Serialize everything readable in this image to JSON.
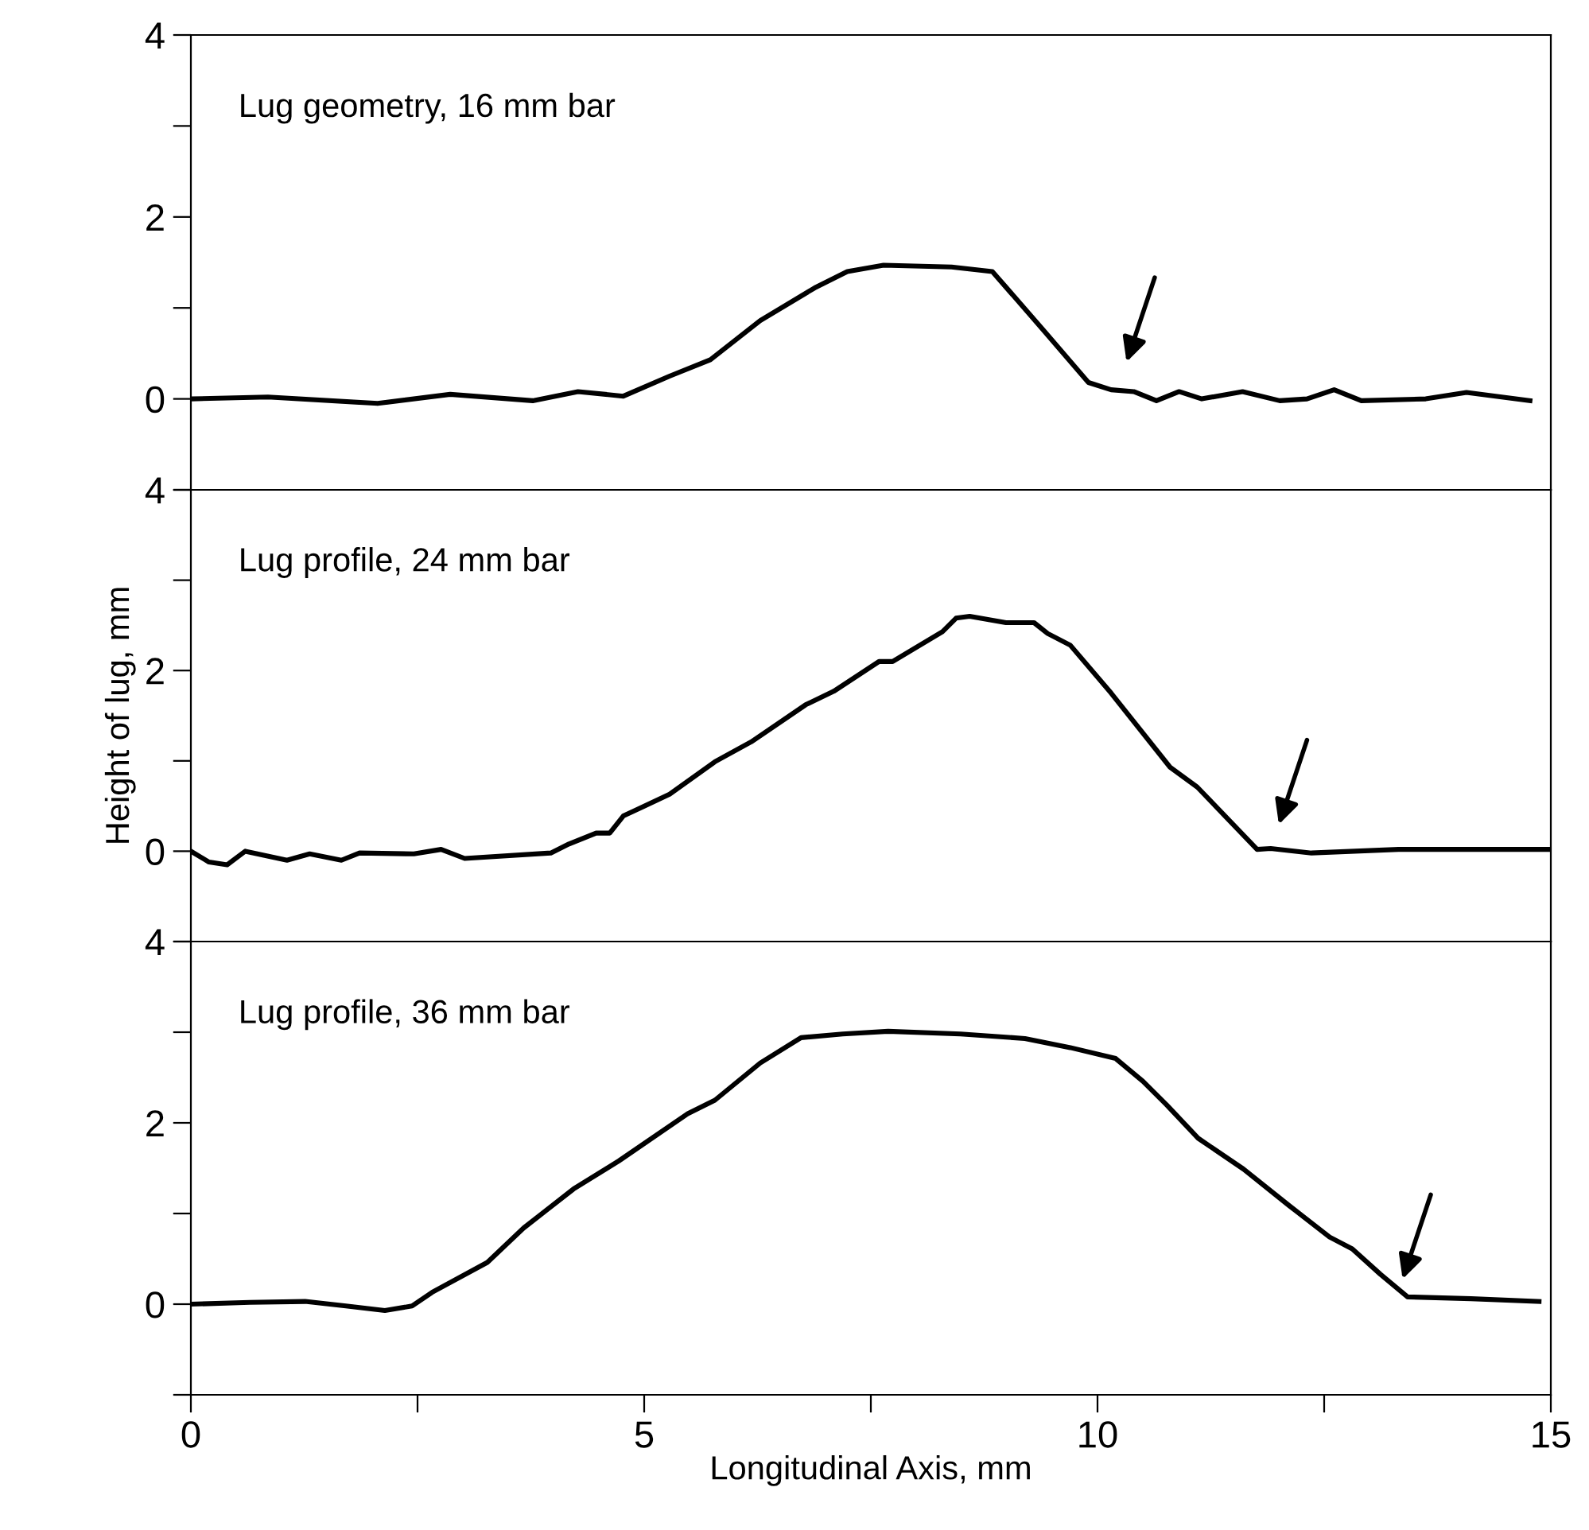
{
  "chart_data": [
    {
      "type": "line",
      "title": "Lug geometry, 16 mm bar",
      "xlim": [
        0,
        15
      ],
      "ylim": [
        -1,
        4
      ],
      "yticks": [
        4,
        {
          "value": 3,
          "label": null
        },
        2,
        {
          "value": 1,
          "label": null
        },
        0,
        {
          "value": -1,
          "label": null
        }
      ],
      "tick_labels": "y",
      "grid": false,
      "legend": false,
      "line_style": "solid",
      "marker": "none",
      "series": [
        {
          "color": "#000000",
          "x": [
            0,
            0.85,
            2.06,
            2.86,
            3.77,
            4.27,
            4.77,
            5.28,
            5.73,
            6.28,
            6.88,
            7.24,
            7.64,
            8.39,
            8.84,
            9.4,
            9.9,
            10.15,
            10.4,
            10.65,
            10.9,
            11.15,
            11.6,
            12.01,
            12.31,
            12.61,
            12.91,
            13.62,
            14.07,
            14.77
          ],
          "values": [
            0,
            0.02,
            -0.05,
            0.05,
            -0.02,
            0.08,
            0.03,
            0.25,
            0.43,
            0.86,
            1.22,
            1.4,
            1.47,
            1.45,
            1.4,
            0.76,
            0.18,
            0.1,
            0.08,
            -0.02,
            0.08,
            0,
            0.08,
            -0.02,
            0,
            0.1,
            -0.02,
            0,
            0.07,
            -0.02
          ]
        }
      ]
    },
    {
      "type": "line",
      "title": "Lug profile, 24 mm bar",
      "ylabel": "Height of lug, mm",
      "xlim": [
        0,
        15
      ],
      "ylim": [
        -1,
        4
      ],
      "yticks": [
        4,
        {
          "value": 3,
          "label": null
        },
        2,
        {
          "value": 1,
          "label": null
        },
        0,
        {
          "value": -1,
          "label": null
        }
      ],
      "tick_labels": "y",
      "grid": false,
      "legend": false,
      "line_style": "solid",
      "marker": "none",
      "series": [
        {
          "color": "#000000",
          "x": [
            0,
            0.2,
            0.4,
            0.6,
            1.06,
            1.31,
            1.66,
            1.86,
            2.46,
            2.76,
            3.02,
            3.97,
            4.17,
            4.47,
            4.62,
            4.77,
            5.28,
            5.78,
            6.18,
            6.78,
            7.09,
            7.59,
            7.74,
            8.29,
            8.44,
            8.59,
            8.99,
            9.3,
            9.45,
            9.7,
            10.15,
            10.8,
            11.1,
            11.76,
            11.91,
            12.36,
            13.32,
            14.12,
            14.97
          ],
          "values": [
            0,
            -0.12,
            -0.15,
            0,
            -0.1,
            -0.03,
            -0.1,
            -0.02,
            -0.03,
            0.02,
            -0.08,
            -0.02,
            0.08,
            0.2,
            0.2,
            0.39,
            0.63,
            0.99,
            1.21,
            1.62,
            1.77,
            2.1,
            2.1,
            2.43,
            2.58,
            2.6,
            2.53,
            2.53,
            2.41,
            2.28,
            1.75,
            0.93,
            0.71,
            0.02,
            0.03,
            -0.02,
            0.02,
            0.02,
            0.02
          ]
        }
      ]
    },
    {
      "type": "line",
      "title": "Lug profile, 36 mm bar",
      "xlabel": "Longitudinal Axis, mm",
      "xlim": [
        0,
        15
      ],
      "xticks": [
        0,
        {
          "value": 2.5,
          "label": null
        },
        5,
        {
          "value": 7.5,
          "label": null
        },
        10,
        {
          "value": 12.5,
          "label": null
        },
        15
      ],
      "ylim": [
        -1,
        4
      ],
      "yticks": [
        4,
        {
          "value": 3,
          "label": null
        },
        2,
        {
          "value": 1,
          "label": null
        },
        0,
        {
          "value": -1,
          "label": null
        }
      ],
      "grid": false,
      "legend": false,
      "line_style": "solid",
      "marker": "none",
      "series": [
        {
          "color": "#000000",
          "x": [
            0,
            0.65,
            1.26,
            1.71,
            2.14,
            2.44,
            2.66,
            3.27,
            3.67,
            4.22,
            4.72,
            5.48,
            5.78,
            6.28,
            6.73,
            7.19,
            7.69,
            8.49,
            9.2,
            9.7,
            10.2,
            10.5,
            10.76,
            11.11,
            11.61,
            12.11,
            12.56,
            12.81,
            13.12,
            13.42,
            14.12,
            14.87
          ],
          "values": [
            0,
            0.02,
            0.03,
            -0.02,
            -0.07,
            -0.02,
            0.13,
            0.46,
            0.84,
            1.27,
            1.58,
            2.1,
            2.25,
            2.66,
            2.94,
            2.98,
            3.01,
            2.98,
            2.93,
            2.83,
            2.71,
            2.46,
            2.2,
            1.83,
            1.49,
            1.09,
            0.74,
            0.61,
            0.33,
            0.08,
            0.06,
            0.03
          ]
        }
      ]
    }
  ]
}
